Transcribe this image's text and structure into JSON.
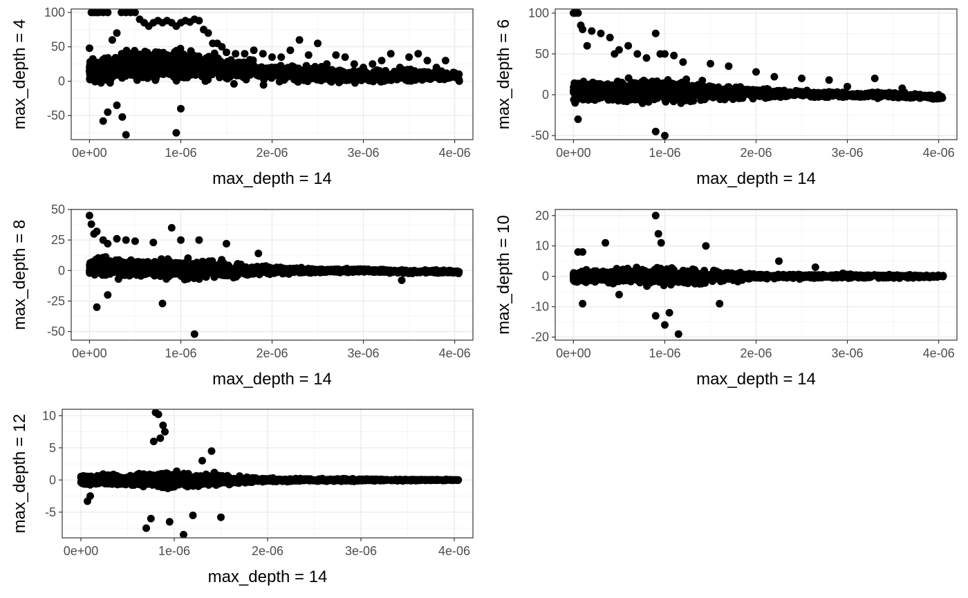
{
  "colors": {
    "points": "#000000",
    "grid_major": "#ebebeb",
    "grid_minor": "#f3f3f3",
    "border": "#333333",
    "tick_text": "#4d4d4d"
  },
  "chart_data": [
    {
      "type": "scatter",
      "title": "",
      "xlabel": "max_depth = 14",
      "ylabel": "max_depth = 4",
      "xlim": [
        -2e-07,
        4.2e-06
      ],
      "ylim": [
        -85,
        105
      ],
      "x_ticks": [
        0,
        1e-06,
        2e-06,
        3e-06,
        4e-06
      ],
      "x_tick_labels": [
        "0e+00",
        "1e-06",
        "2e-06",
        "3e-06",
        "4e-06"
      ],
      "y_ticks": [
        -50,
        0,
        50,
        100
      ],
      "y_tick_labels": [
        "-50",
        "0",
        "50",
        "100"
      ],
      "grid": true,
      "points": {
        "x": [
          0.0,
          2e-08,
          5e-08,
          8e-08,
          1e-07,
          1.5e-07,
          2e-07,
          2.5e-07,
          3e-07,
          3.5e-07,
          4e-07,
          4.5e-07,
          5e-07,
          5.5e-07,
          6e-07,
          6.5e-07,
          7e-07,
          7.5e-07,
          8e-07,
          8.5e-07,
          9e-07,
          9.5e-07,
          1e-06,
          1.05e-06,
          1.1e-06,
          1.15e-06,
          1.2e-06,
          1.25e-06,
          1.3e-06,
          1.35e-06,
          1.4e-06,
          1.45e-06,
          1.5e-06,
          1.6e-06,
          1.7e-06,
          1.8e-06,
          1.9e-06,
          2e-06,
          2.1e-06,
          2.2e-06,
          2.3e-06,
          2.4e-06,
          2.5e-06,
          2.6e-06,
          2.7e-06,
          2.8e-06,
          2.9e-06,
          3e-06,
          3.1e-06,
          3.2e-06,
          3.3e-06,
          3.4e-06,
          3.5e-06,
          3.6e-06,
          3.7e-06,
          3.8e-06,
          3.9e-06,
          4e-06,
          4.05e-06,
          4e-07,
          3.6e-07,
          9.5e-07,
          1e-06,
          1.5e-07,
          2e-07,
          3e-07
        ],
        "y": [
          48,
          100,
          100,
          100,
          100,
          100,
          100,
          60,
          70,
          100,
          100,
          100,
          100,
          90,
          85,
          80,
          85,
          88,
          85,
          88,
          85,
          80,
          85,
          88,
          86,
          90,
          88,
          75,
          70,
          55,
          55,
          50,
          42,
          40,
          40,
          45,
          40,
          35,
          35,
          45,
          60,
          38,
          55,
          25,
          38,
          35,
          25,
          20,
          25,
          30,
          40,
          20,
          35,
          40,
          30,
          20,
          30,
          12,
          0,
          -78,
          -52,
          -75,
          -40,
          -58,
          -45,
          -35
        ]
      },
      "point_cloud": {
        "x": [
          0,
          5e-07,
          1e-06,
          1.5e-06,
          2e-06,
          2.5e-06,
          3e-06,
          3.5e-06,
          4e-06
        ],
        "y_low": [
          -30,
          -40,
          -45,
          -30,
          -25,
          -20,
          -20,
          -20,
          -10
        ],
        "y_high": [
          70,
          80,
          85,
          75,
          50,
          45,
          35,
          35,
          25
        ],
        "y_center": [
          15,
          25,
          25,
          20,
          12,
          10,
          8,
          8,
          8
        ]
      }
    },
    {
      "type": "scatter",
      "title": "",
      "xlabel": "max_depth = 14",
      "ylabel": "max_depth = 6",
      "xlim": [
        -2e-07,
        4.2e-06
      ],
      "ylim": [
        -55,
        105
      ],
      "x_ticks": [
        0,
        1e-06,
        2e-06,
        3e-06,
        4e-06
      ],
      "x_tick_labels": [
        "0e+00",
        "1e-06",
        "2e-06",
        "3e-06",
        "4e-06"
      ],
      "y_ticks": [
        -50,
        0,
        50,
        100
      ],
      "y_tick_labels": [
        "-50",
        "0",
        "50",
        "100"
      ],
      "grid": true,
      "points": {
        "x": [
          0.0,
          2e-08,
          5e-08,
          8e-08,
          1e-07,
          1.5e-07,
          2e-07,
          3e-07,
          4e-07,
          4.5e-07,
          5e-07,
          6e-07,
          7e-07,
          8e-07,
          9e-07,
          9.5e-07,
          1e-06,
          1.1e-06,
          1.2e-06,
          1.5e-06,
          1.7e-06,
          2e-06,
          2.2e-06,
          2.5e-06,
          2.8e-06,
          3e-06,
          3.3e-06,
          3.6e-06,
          4e-06,
          5e-08,
          9e-07,
          1e-06
        ],
        "y": [
          100,
          100,
          100,
          85,
          80,
          60,
          78,
          75,
          70,
          50,
          55,
          60,
          50,
          45,
          75,
          50,
          50,
          48,
          40,
          38,
          35,
          28,
          22,
          20,
          18,
          10,
          20,
          8,
          0,
          -30,
          -45,
          -50
        ]
      },
      "point_cloud": {
        "x": [
          0,
          5e-07,
          1e-06,
          1.5e-06,
          2e-06,
          2.5e-06,
          3e-06,
          3.5e-06,
          4e-06
        ],
        "y_low": [
          -25,
          -30,
          -40,
          -25,
          -15,
          -8,
          -8,
          -8,
          -10
        ],
        "y_high": [
          45,
          40,
          45,
          30,
          20,
          15,
          12,
          12,
          5
        ],
        "y_center": [
          5,
          5,
          5,
          3,
          2,
          1,
          0,
          0,
          -3
        ]
      }
    },
    {
      "type": "scatter",
      "title": "",
      "xlabel": "max_depth = 14",
      "ylabel": "max_depth = 8",
      "xlim": [
        -2e-07,
        4.2e-06
      ],
      "ylim": [
        -57,
        50
      ],
      "x_ticks": [
        0,
        1e-06,
        2e-06,
        3e-06,
        4e-06
      ],
      "x_tick_labels": [
        "0e+00",
        "1e-06",
        "2e-06",
        "3e-06",
        "4e-06"
      ],
      "y_ticks": [
        -50,
        -25,
        0,
        25,
        50
      ],
      "y_tick_labels": [
        "-50",
        "-25",
        "0",
        "25",
        "50"
      ],
      "grid": true,
      "points": {
        "x": [
          0.0,
          2e-08,
          5e-08,
          8e-08,
          1.5e-07,
          2e-07,
          3e-07,
          4e-07,
          5e-07,
          7e-07,
          9e-07,
          1e-06,
          1.2e-06,
          1.5e-06,
          1.85e-06,
          8e-08,
          2e-07,
          8e-07,
          1.15e-06,
          3.42e-06
        ],
        "y": [
          45,
          38,
          30,
          32,
          25,
          22,
          26,
          25,
          24,
          23,
          35,
          25,
          25,
          22,
          14,
          -30,
          -20,
          -27,
          -52,
          -8
        ]
      },
      "point_cloud": {
        "x": [
          0,
          5e-07,
          1e-06,
          1.5e-06,
          2e-06,
          2.5e-06,
          3e-06,
          3.5e-06,
          4e-06
        ],
        "y_low": [
          -15,
          -18,
          -20,
          -20,
          -8,
          -5,
          -4,
          -4,
          -5
        ],
        "y_high": [
          25,
          22,
          22,
          18,
          8,
          6,
          5,
          4,
          3
        ],
        "y_center": [
          3,
          2,
          1,
          1,
          0,
          0,
          0,
          -1,
          -1
        ]
      }
    },
    {
      "type": "scatter",
      "title": "",
      "xlabel": "max_depth = 14",
      "ylabel": "max_depth = 10",
      "xlim": [
        -2e-07,
        4.2e-06
      ],
      "ylim": [
        -21,
        22
      ],
      "x_ticks": [
        0,
        1e-06,
        2e-06,
        3e-06,
        4e-06
      ],
      "x_tick_labels": [
        "0e+00",
        "1e-06",
        "2e-06",
        "3e-06",
        "4e-06"
      ],
      "y_ticks": [
        -20,
        -10,
        0,
        10,
        20
      ],
      "y_tick_labels": [
        "-20",
        "-10",
        "0",
        "10",
        "20"
      ],
      "grid": true,
      "points": {
        "x": [
          5e-08,
          1e-07,
          3.5e-07,
          9e-07,
          9.3e-07,
          9.6e-07,
          1.45e-06,
          2.25e-06,
          2.65e-06,
          1e-07,
          9e-07,
          1e-06,
          1.15e-06,
          1.05e-06,
          1.6e-06,
          5e-07
        ],
        "y": [
          8,
          8,
          11,
          20,
          14,
          11,
          10,
          5,
          3,
          -9,
          -13,
          -16,
          -19,
          -12,
          -9,
          -6
        ]
      },
      "point_cloud": {
        "x": [
          0,
          5e-07,
          1e-06,
          1.5e-06,
          2e-06,
          2.5e-06,
          3e-06,
          3.5e-06,
          4e-06
        ],
        "y_low": [
          -5,
          -6,
          -10,
          -7,
          -2,
          -2,
          -2,
          -2,
          -1
        ],
        "y_high": [
          6,
          7,
          8,
          6,
          2,
          2,
          2,
          2,
          1
        ],
        "y_center": [
          0,
          0,
          0,
          0,
          0,
          0,
          0,
          0,
          0
        ]
      }
    },
    {
      "type": "scatter",
      "title": "",
      "xlabel": "max_depth = 14",
      "ylabel": "max_depth = 12",
      "xlim": [
        -2e-07,
        4.2e-06
      ],
      "ylim": [
        -9,
        11
      ],
      "x_ticks": [
        0,
        1e-06,
        2e-06,
        3e-06,
        4e-06
      ],
      "x_tick_labels": [
        "0e+00",
        "1e-06",
        "2e-06",
        "3e-06",
        "4e-06"
      ],
      "y_ticks": [
        -5,
        0,
        5,
        10
      ],
      "y_tick_labels": [
        "-5",
        "0",
        "5",
        "10"
      ],
      "grid": true,
      "points": {
        "x": [
          8e-07,
          8.3e-07,
          8.8e-07,
          9e-07,
          7.8e-07,
          8.5e-07,
          7e-07,
          7.5e-07,
          1.1e-06,
          9.5e-07,
          1.5e-06,
          1.2e-06,
          1.3e-06,
          1.4e-06,
          7e-08,
          1e-07
        ],
        "y": [
          10.5,
          10.2,
          8.5,
          7.5,
          6,
          6.5,
          -7.5,
          -6,
          -8.5,
          -6.5,
          -5.8,
          -5.5,
          3,
          4.5,
          -3.3,
          -2.5
        ]
      },
      "point_cloud": {
        "x": [
          0,
          5e-07,
          1e-06,
          1.5e-06,
          2e-06,
          2.5e-06,
          3e-06,
          3.5e-06,
          4e-06
        ],
        "y_low": [
          -2,
          -2.5,
          -4,
          -2.5,
          -0.8,
          -0.6,
          -0.5,
          -0.3,
          -0.2
        ],
        "y_high": [
          2,
          2.5,
          3.5,
          2,
          1,
          0.6,
          0.5,
          0.3,
          0.2
        ],
        "y_center": [
          0,
          0,
          0,
          0,
          0,
          0,
          0,
          0,
          0
        ]
      }
    }
  ]
}
